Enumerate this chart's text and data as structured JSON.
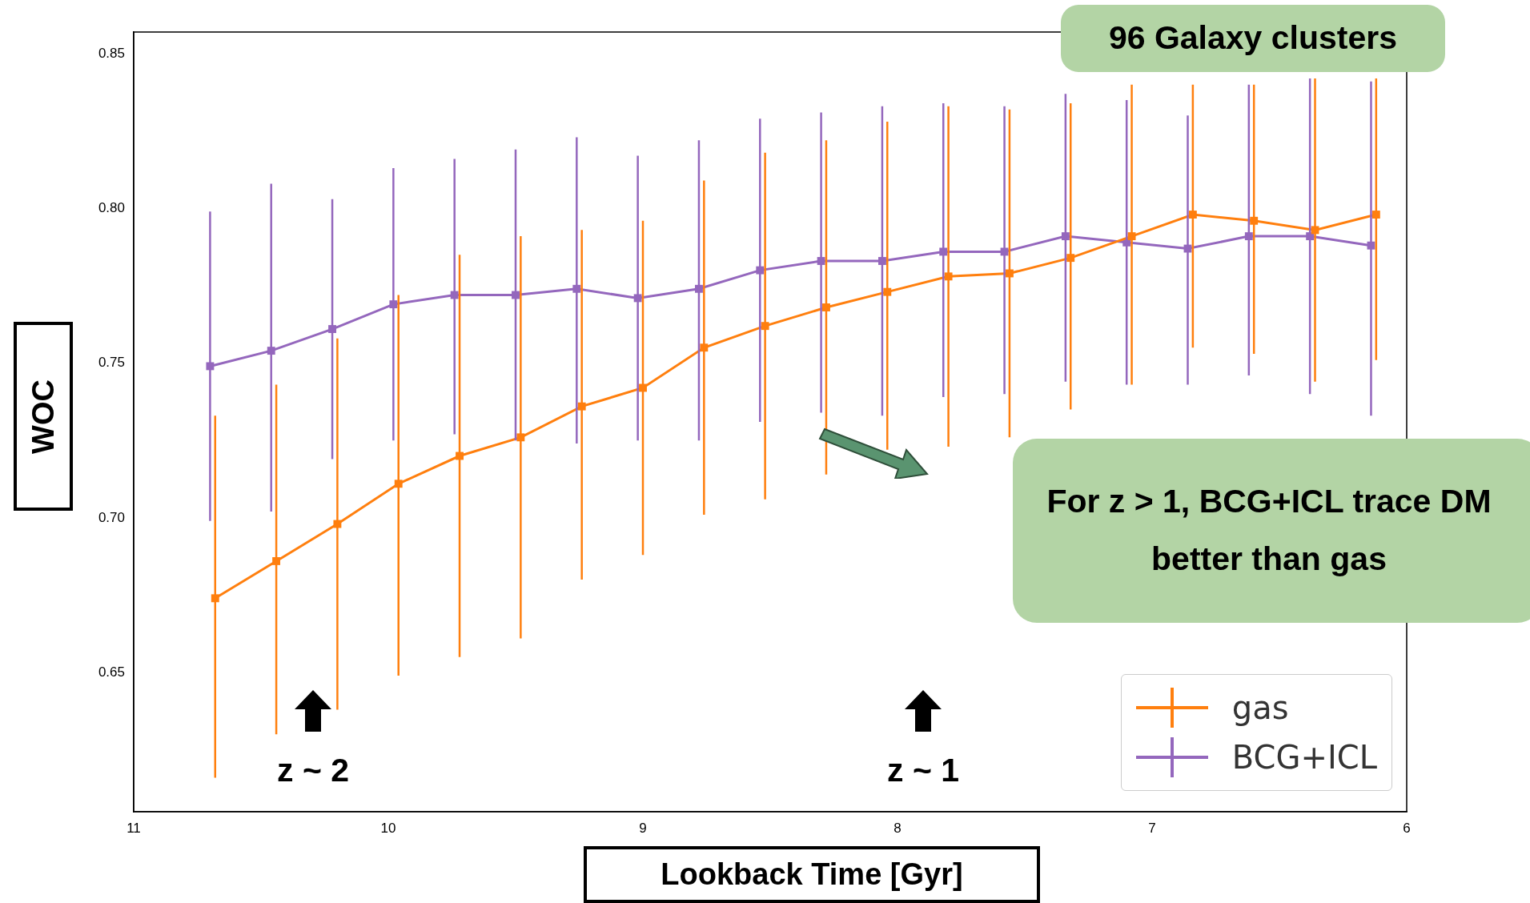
{
  "chart_data": {
    "type": "line",
    "xlabel": "Lookback Time  [Gyr]",
    "ylabel": "WOC",
    "x": [
      10.68,
      10.44,
      10.2,
      9.96,
      9.72,
      9.48,
      9.24,
      9.0,
      8.76,
      8.52,
      8.28,
      8.04,
      7.8,
      7.56,
      7.32,
      7.08,
      6.84,
      6.6,
      6.36,
      6.12
    ],
    "series": [
      {
        "name": "gas",
        "color": "#ff7f0e",
        "values": [
          0.674,
          0.686,
          0.698,
          0.711,
          0.72,
          0.726,
          0.736,
          0.742,
          0.755,
          0.762,
          0.768,
          0.773,
          0.778,
          0.779,
          0.784,
          0.791,
          0.798,
          0.796,
          0.793,
          0.798
        ],
        "errors": [
          [
            0.616,
            0.733
          ],
          [
            0.63,
            0.743
          ],
          [
            0.638,
            0.758
          ],
          [
            0.649,
            0.772
          ],
          [
            0.655,
            0.785
          ],
          [
            0.661,
            0.791
          ],
          [
            0.68,
            0.793
          ],
          [
            0.688,
            0.796
          ],
          [
            0.701,
            0.809
          ],
          [
            0.706,
            0.818
          ],
          [
            0.714,
            0.822
          ],
          [
            0.722,
            0.828
          ],
          [
            0.723,
            0.833
          ],
          [
            0.726,
            0.832
          ],
          [
            0.735,
            0.834
          ],
          [
            0.743,
            0.84
          ],
          [
            0.755,
            0.84
          ],
          [
            0.753,
            0.84
          ],
          [
            0.744,
            0.842
          ],
          [
            0.751,
            0.842
          ]
        ]
      },
      {
        "name": "BCG+ICL",
        "color": "#9467bd",
        "x": [
          10.7,
          10.46,
          10.22,
          9.98,
          9.74,
          9.5,
          9.26,
          9.02,
          8.78,
          8.54,
          8.3,
          8.06,
          7.82,
          7.58,
          7.34,
          7.1,
          6.86,
          6.62,
          6.38,
          6.14
        ],
        "values": [
          0.749,
          0.754,
          0.761,
          0.769,
          0.772,
          0.772,
          0.774,
          0.771,
          0.774,
          0.78,
          0.783,
          0.783,
          0.786,
          0.786,
          0.791,
          0.789,
          0.787,
          0.791,
          0.791,
          0.788
        ],
        "errors": [
          [
            0.699,
            0.799
          ],
          [
            0.702,
            0.808
          ],
          [
            0.719,
            0.803
          ],
          [
            0.725,
            0.813
          ],
          [
            0.727,
            0.816
          ],
          [
            0.725,
            0.819
          ],
          [
            0.724,
            0.823
          ],
          [
            0.725,
            0.817
          ],
          [
            0.725,
            0.822
          ],
          [
            0.731,
            0.829
          ],
          [
            0.734,
            0.831
          ],
          [
            0.733,
            0.833
          ],
          [
            0.739,
            0.834
          ],
          [
            0.74,
            0.833
          ],
          [
            0.744,
            0.837
          ],
          [
            0.743,
            0.835
          ],
          [
            0.743,
            0.83
          ],
          [
            0.746,
            0.84
          ],
          [
            0.74,
            0.842
          ],
          [
            0.733,
            0.841
          ]
        ]
      }
    ],
    "xlim": [
      11,
      6
    ],
    "xticks": [
      11,
      10,
      9,
      8,
      7,
      6
    ],
    "ylim": [
      0.605,
      0.857
    ],
    "yticks": [
      {
        "value": 0.65,
        "label": "0.65"
      },
      {
        "value": 0.7,
        "label": "0.70"
      },
      {
        "value": 0.75,
        "label": "0.75"
      },
      {
        "value": 0.8,
        "label": "0.80"
      },
      {
        "value": 0.85,
        "label": "0.85"
      }
    ],
    "grid": false,
    "legend": "bottom right",
    "marker": "square",
    "annotations": [
      "96 Galaxy clusters",
      "For z > 1, BCG+ICL trace DM better than gas",
      "z ~ 2",
      "z ~ 1"
    ]
  }
}
